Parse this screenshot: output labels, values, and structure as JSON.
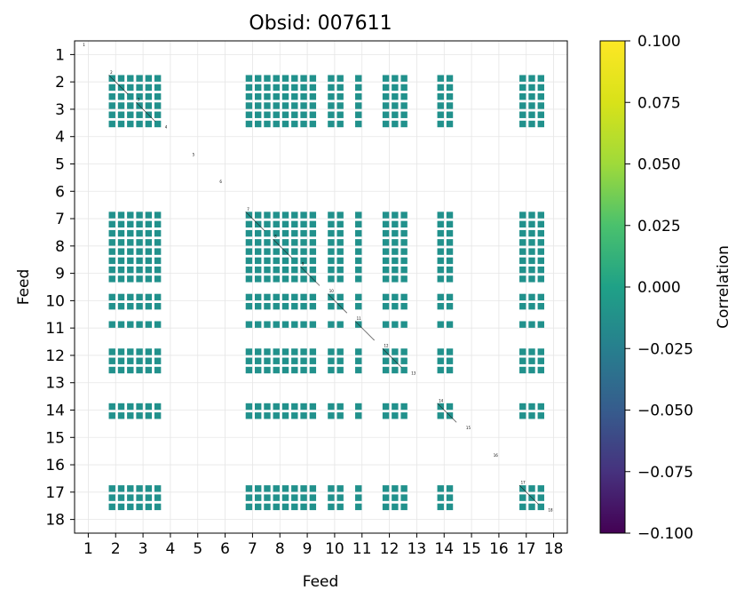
{
  "chart_data": {
    "type": "heatmap",
    "title": "Obsid: 007611",
    "xlabel": "Feed",
    "ylabel": "Feed",
    "feeds": [
      1,
      2,
      3,
      4,
      5,
      6,
      7,
      8,
      9,
      10,
      11,
      12,
      13,
      14,
      15,
      16,
      17,
      18
    ],
    "x_ticks": [
      "1",
      "2",
      "3",
      "4",
      "5",
      "6",
      "7",
      "8",
      "9",
      "10",
      "11",
      "12",
      "13",
      "14",
      "15",
      "16",
      "17",
      "18"
    ],
    "y_ticks": [
      "1",
      "2",
      "3",
      "4",
      "5",
      "6",
      "7",
      "8",
      "9",
      "10",
      "11",
      "12",
      "13",
      "14",
      "15",
      "16",
      "17",
      "18"
    ],
    "active_feeds": [
      2,
      3,
      7,
      8,
      9,
      10,
      11,
      12,
      14,
      17
    ],
    "sub_columns": {
      "2": [
        0,
        1,
        2
      ],
      "3": [
        0,
        1,
        2
      ],
      "4": [],
      "7": [
        0,
        1,
        2
      ],
      "8": [
        0,
        1,
        2
      ],
      "9": [
        0,
        1
      ],
      "10": [
        0,
        1
      ],
      "11": [
        0
      ],
      "12": [
        0,
        1,
        2
      ],
      "14": [
        0,
        1
      ],
      "17": [
        0,
        1,
        2
      ]
    },
    "cell_value": 0.0,
    "diagonal_labels": [
      "1",
      "2",
      "3",
      "4",
      "5",
      "6",
      "7",
      "8",
      "9",
      "10",
      "11",
      "12",
      "13",
      "14",
      "15",
      "16",
      "17",
      "18"
    ],
    "colorbar": {
      "label": "Correlation",
      "min": -0.1,
      "max": 0.1,
      "ticks": [
        "0.100",
        "0.075",
        "0.050",
        "0.025",
        "0.000",
        "−0.025",
        "−0.050",
        "−0.075",
        "−0.100"
      ],
      "tick_values": [
        0.1,
        0.075,
        0.05,
        0.025,
        0.0,
        -0.025,
        -0.05,
        -0.075,
        -0.1
      ],
      "colormap": "viridis"
    },
    "grid": true,
    "colors": {
      "cell": "#21918c",
      "grid": "#e6e6e6"
    }
  }
}
